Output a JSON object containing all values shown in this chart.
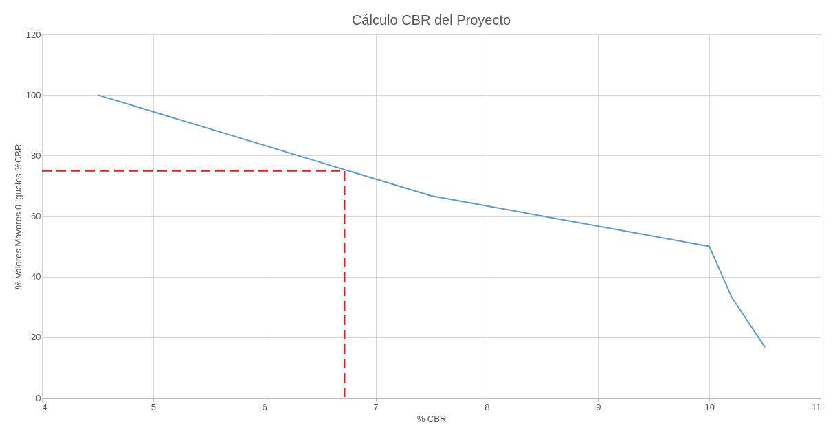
{
  "chart_data": {
    "type": "line",
    "title": "Cálculo CBR del Proyecto",
    "xlabel": "% CBR",
    "ylabel": "% Valores Mayores 0 Iguales %CBR",
    "xlim": [
      4,
      11
    ],
    "xticks": [
      4,
      5,
      6,
      7,
      8,
      9,
      10,
      11
    ],
    "ylim": [
      0,
      120
    ],
    "yticks": [
      0,
      20,
      40,
      60,
      80,
      100,
      120
    ],
    "grid": true,
    "series": [
      {
        "color": "#5b9bd5",
        "x": [
          4.5,
          7.5,
          10,
          10.2,
          10.5
        ],
        "values": [
          100,
          66.7,
          50,
          33.3,
          16.7
        ],
        "line_style": "solid"
      },
      {
        "color": "#e02020",
        "x": [
          4,
          6.72,
          6.72
        ],
        "values": [
          75,
          75,
          0
        ],
        "line_style": "dashed"
      }
    ]
  }
}
